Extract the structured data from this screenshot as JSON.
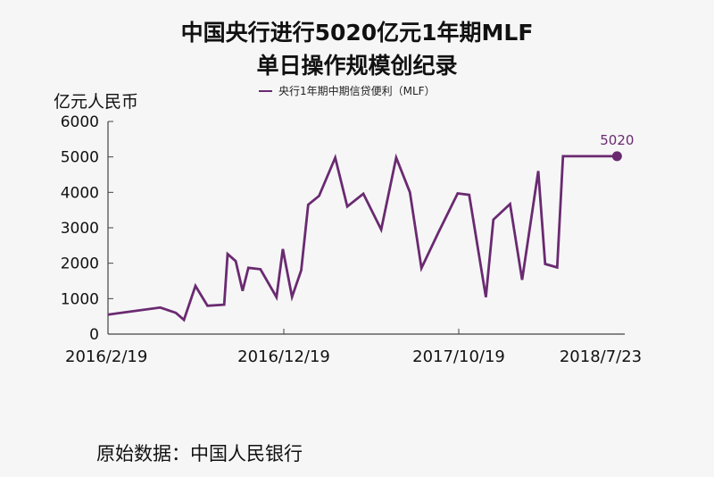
{
  "chart_data": {
    "type": "line",
    "title": [
      "中国央行进行5020亿元1年期MLF",
      "单日操作规模创纪录"
    ],
    "ylabel": "亿元人民币",
    "ylim": [
      0,
      6000
    ],
    "yticks": [
      0,
      1000,
      2000,
      3000,
      4000,
      5000,
      6000
    ],
    "xticks": [
      "2016/2/19",
      "2016/12/19",
      "2017/10/19",
      "2018/7/23"
    ],
    "legend": {
      "placement": "top",
      "entries": [
        "央行1年期中期信贷便利（MLF）"
      ]
    },
    "grid": false,
    "series": [
      {
        "name": "央行1年期中期信贷便利（MLF）",
        "color": "#6a2a70",
        "x": [
          "2016-02-19",
          "2016-05-20",
          "2016-06-16",
          "2016-06-30",
          "2016-07-20",
          "2016-08-10",
          "2016-09-08",
          "2016-09-14",
          "2016-09-28",
          "2016-10-10",
          "2016-10-20",
          "2016-11-10",
          "2016-12-08",
          "2016-12-19",
          "2017-01-04",
          "2017-01-20",
          "2017-02-01",
          "2017-02-20",
          "2017-03-20",
          "2017-04-10",
          "2017-05-08",
          "2017-06-08",
          "2017-07-04",
          "2017-07-28",
          "2017-08-17",
          "2017-09-15",
          "2017-10-19",
          "2017-11-08",
          "2017-12-07",
          "2017-12-20",
          "2018-01-18",
          "2018-02-08",
          "2018-03-08",
          "2018-03-20",
          "2018-04-10",
          "2018-04-20",
          "2018-05-10",
          "2018-05-25",
          "2018-06-08",
          "2018-06-25",
          "2018-07-23",
          "2018-07-24"
        ],
        "values": [
          550,
          750,
          600,
          400,
          1360,
          800,
          830,
          2260,
          2060,
          1220,
          1870,
          1830,
          1040,
          2400,
          1050,
          1800,
          3650,
          3900,
          4980,
          3600,
          3960,
          2950,
          4980,
          4000,
          1860,
          2850,
          3970,
          3930,
          1040,
          3230,
          3670,
          1530,
          4600,
          1980,
          1880,
          5020,
          5020,
          5020,
          5020,
          5020,
          5020,
          5020
        ],
        "annotation": {
          "x": "2018-07-23",
          "value": 5020,
          "text": "5020"
        }
      }
    ]
  },
  "source": "原始数据：中国人民银行"
}
